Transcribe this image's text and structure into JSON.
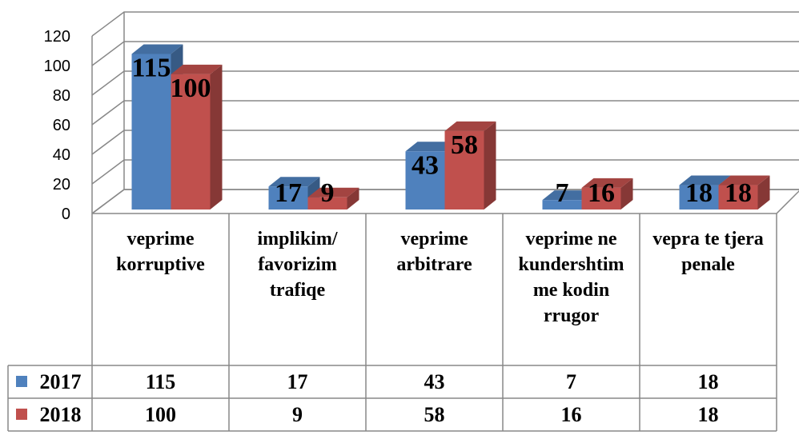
{
  "chart_data": {
    "type": "bar3d",
    "categories": [
      "veprime korruptive",
      "implikim/ favorizim trafiqe",
      "veprime arbitrare",
      "veprime ne kundershtim me kodin rrugor",
      "vepra te tjera penale"
    ],
    "series": [
      {
        "name": "2017",
        "color": "#4f81bd",
        "values": [
          115,
          17,
          43,
          7,
          18
        ]
      },
      {
        "name": "2018",
        "color": "#c0504d",
        "values": [
          100,
          9,
          58,
          16,
          18
        ]
      }
    ],
    "ylim": [
      0,
      120
    ],
    "yticks": [
      0,
      20,
      40,
      60,
      80,
      100,
      120
    ],
    "grid": true
  }
}
